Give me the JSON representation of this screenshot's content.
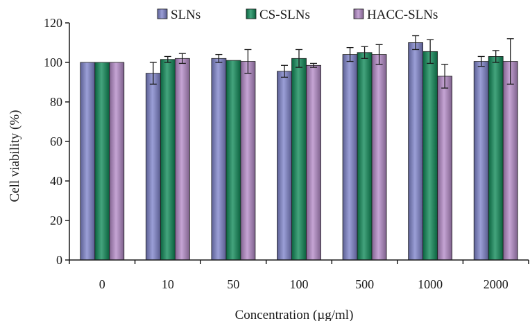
{
  "chart_data": {
    "type": "bar",
    "title": "",
    "xlabel": "Concentration (µg/ml)",
    "ylabel": "Cell viability (%)",
    "ylim": [
      0,
      120
    ],
    "yticks": [
      0,
      20,
      40,
      60,
      80,
      100,
      120
    ],
    "categories": [
      "0",
      "10",
      "50",
      "100",
      "500",
      "1000",
      "2000"
    ],
    "grid": false,
    "legend_position": "top",
    "error_bars": true,
    "series": [
      {
        "name": "SLNs",
        "color": "#7f84cc",
        "values": [
          100,
          94.5,
          102,
          95.5,
          104,
          110,
          100.5
        ],
        "errors": [
          0,
          5.5,
          2,
          3,
          3.5,
          3.5,
          2.5
        ]
      },
      {
        "name": "CS-SLNs",
        "color": "#0f8a58",
        "values": [
          100,
          101.5,
          101,
          102,
          105,
          105.5,
          103
        ],
        "errors": [
          0,
          1.5,
          0,
          4.5,
          3,
          6,
          3
        ]
      },
      {
        "name": "HACC-SLNs",
        "color": "#b48ac8",
        "values": [
          100,
          102,
          100.5,
          98.5,
          104,
          93,
          100.5
        ],
        "errors": [
          0,
          2.5,
          6,
          1,
          5,
          6,
          11.5
        ]
      }
    ]
  }
}
